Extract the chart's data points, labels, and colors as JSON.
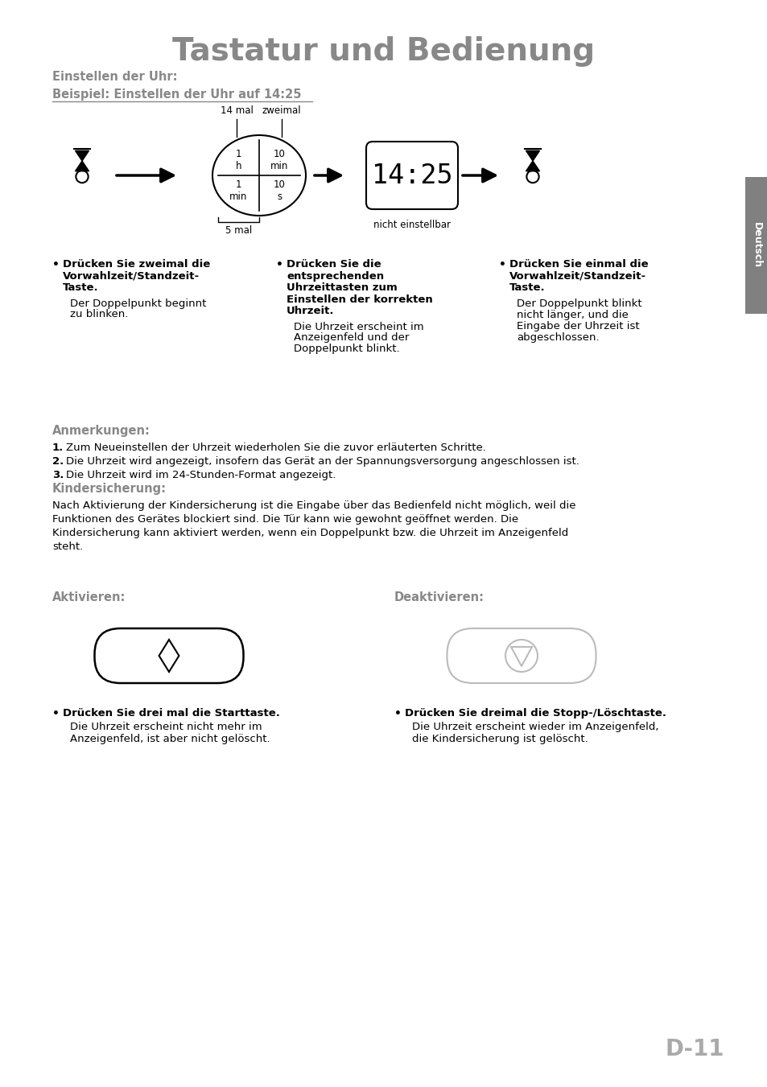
{
  "title": "Tastatur und Bedienung",
  "title_color": "#888888",
  "title_fontsize": 28,
  "bg_color": "#ffffff",
  "sidebar_color": "#808080",
  "sidebar_text": "Deutsch",
  "page_number": "D-11",
  "page_number_color": "#aaaaaa",
  "section1_label": "Einstellen der Uhr:",
  "section1_color": "#888888",
  "section2_label": "Beispiel: Einstellen der Uhr auf 14:25",
  "section2_color": "#888888",
  "label_14mal": "14 mal",
  "label_zweimal": "zweimal",
  "label_5mal": "5 mal",
  "label_nicht": "nicht einstellbar",
  "display_text": "14:25",
  "col1_bold": "Drücken Sie zweimal die\nVorwahlzeit/Standzeit-\nTaste.",
  "col1_normal": "Der Doppelpunkt beginnt\nzu blinken.",
  "col2_bold": "Drücken Sie die\nentsprechenden\nUhrzeittasten zum\nEinstellen der korrekten\nUhrzeit.",
  "col2_normal": "Die Uhrzeit erscheint im\nAnzeigenfeld und der\nDoppelpunkt blinkt.",
  "col3_bold": "Drücken Sie einmal die\nVorwahlzeit/Standzeit-\nTaste.",
  "col3_normal": "Der Doppelpunkt blinkt\nnicht länger, und die\nEingabe der Uhrzeit ist\nabgeschlossen.",
  "anmerkungen_title": "Anmerkungen:",
  "anmerkungen_color": "#888888",
  "anmerkungen_items": [
    "Zum Neueinstellen der Uhrzeit wiederholen Sie die zuvor erläuterten Schritte.",
    "Die Uhrzeit wird angezeigt, insofern das Gerät an der Spannungsversorgung angeschlossen ist.",
    "Die Uhrzeit wird im 24-Stunden-Format angezeigt."
  ],
  "kindersicherung_title": "Kindersicherung:",
  "kindersicherung_color": "#888888",
  "kindersicherung_text": "Nach Aktivierung der Kindersicherung ist die Eingabe über das Bedienfeld nicht möglich, weil die\nFunktionen des Gerätes blockiert sind. Die Tür kann wie gewohnt geöffnet werden. Die\nKindersicherung kann aktiviert werden, wenn ein Doppelpunkt bzw. die Uhrzeit im Anzeigenfeld\nsteht.",
  "aktivieren_label": "Aktivieren:",
  "deaktivieren_label": "Deaktivieren:",
  "label_color": "#888888",
  "btn1_bold": "Drücken Sie drei mal die Starttaste.",
  "btn1_normal": "Die Uhrzeit erscheint nicht mehr im\nAnzeigenfeld, ist aber nicht gelöscht.",
  "btn2_bold": "Drücken Sie dreimal die Stopp-/Löschtaste.",
  "btn2_normal": "Die Uhrzeit erscheint wieder im Anzeigenfeld,\ndie Kindersicherung ist gelöscht."
}
